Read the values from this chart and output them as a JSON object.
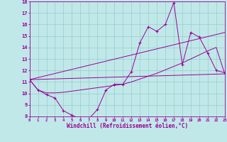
{
  "xlabel": "Windchill (Refroidissement éolien,°C)",
  "xlim": [
    0,
    23
  ],
  "ylim": [
    8,
    18
  ],
  "yticks": [
    8,
    9,
    10,
    11,
    12,
    13,
    14,
    15,
    16,
    17,
    18
  ],
  "xticks": [
    0,
    1,
    2,
    3,
    4,
    5,
    6,
    7,
    8,
    9,
    10,
    11,
    12,
    13,
    14,
    15,
    16,
    17,
    18,
    19,
    20,
    21,
    22,
    23
  ],
  "bg_color": "#c0e8e8",
  "grid_color": "#99cccc",
  "line_color": "#990099",
  "series_main": {
    "x": [
      0,
      1,
      2,
      3,
      4,
      5,
      6,
      7,
      8,
      9,
      10,
      11,
      12,
      13,
      14,
      15,
      16,
      17,
      18,
      19,
      20,
      21,
      22,
      23
    ],
    "y": [
      11.2,
      10.3,
      9.9,
      9.6,
      8.5,
      8.1,
      7.8,
      7.8,
      8.6,
      10.3,
      10.8,
      10.8,
      11.9,
      14.4,
      15.8,
      15.4,
      16.0,
      17.9,
      12.5,
      15.3,
      14.9,
      13.5,
      12.0,
      11.8
    ]
  },
  "series_smooth": {
    "x": [
      0,
      1,
      2,
      3,
      4,
      5,
      6,
      7,
      8,
      9,
      10,
      11,
      12,
      13,
      14,
      15,
      16,
      17,
      18,
      19,
      20,
      21,
      22,
      23
    ],
    "y": [
      11.2,
      10.3,
      10.05,
      10.05,
      10.1,
      10.2,
      10.3,
      10.4,
      10.5,
      10.6,
      10.7,
      10.8,
      11.0,
      11.25,
      11.5,
      11.75,
      12.05,
      12.35,
      12.65,
      13.0,
      13.35,
      13.7,
      14.0,
      11.7
    ]
  },
  "line_low": {
    "x": [
      0,
      23
    ],
    "y": [
      11.2,
      11.7
    ]
  },
  "line_high": {
    "x": [
      0,
      23
    ],
    "y": [
      11.2,
      15.3
    ]
  }
}
